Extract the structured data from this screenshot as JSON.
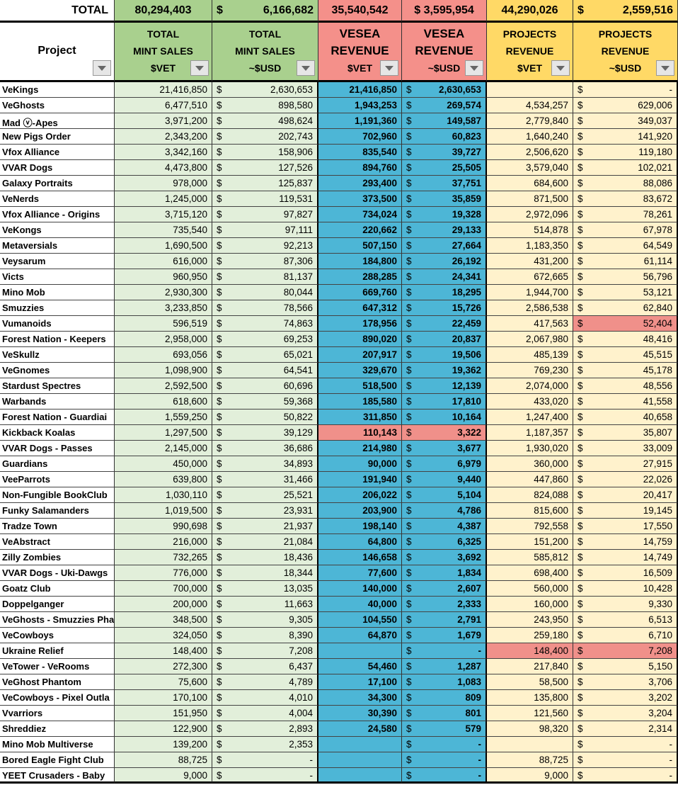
{
  "currency_symbol": "$",
  "totals": [
    "TOTAL",
    "80,294,403",
    "6,166,682",
    "35,540,542",
    "3,595,954",
    "44,290,026",
    "2,559,516"
  ],
  "headers": [
    [
      "Project"
    ],
    [
      "TOTAL",
      "MINT SALES",
      "$VET"
    ],
    [
      "TOTAL",
      "MINT SALES",
      "~$USD"
    ],
    [
      "VESEA",
      "REVENUE",
      "$VET"
    ],
    [
      "VESEA",
      "REVENUE",
      "~$USD"
    ],
    [
      "PROJECTS",
      "REVENUE",
      "$VET"
    ],
    [
      "PROJECTS",
      "REVENUE",
      "~$USD"
    ]
  ],
  "column_colors": {
    "header": [
      "#ffffff",
      "#a9d08e",
      "#a9d08e",
      "#f4908a",
      "#f4908a",
      "#ffd966",
      "#ffd966"
    ],
    "body": [
      "#ffffff",
      "#e2efda",
      "#e2efda",
      "#4db6d6",
      "#4db6d6",
      "#fff2cc",
      "#fff2cc"
    ]
  },
  "highlight_color": "#f0908a",
  "highlights": [
    [
      22,
      3
    ],
    [
      22,
      4
    ],
    [
      15,
      6
    ],
    [
      36,
      5
    ],
    [
      36,
      6
    ]
  ],
  "rows": [
    [
      "VeKings",
      "21,416,850",
      "2,630,653",
      "21,416,850",
      "2,630,653",
      null,
      "-"
    ],
    [
      "VeGhosts",
      "6,477,510",
      "898,580",
      "1,943,253",
      "269,574",
      "4,534,257",
      "629,006"
    ],
    [
      "Mad ⓥ-Apes",
      "3,971,200",
      "498,624",
      "1,191,360",
      "149,587",
      "2,779,840",
      "349,037"
    ],
    [
      "New Pigs Order",
      "2,343,200",
      "202,743",
      "702,960",
      "60,823",
      "1,640,240",
      "141,920"
    ],
    [
      "Vfox Alliance",
      "3,342,160",
      "158,906",
      "835,540",
      "39,727",
      "2,506,620",
      "119,180"
    ],
    [
      "VVAR Dogs",
      "4,473,800",
      "127,526",
      "894,760",
      "25,505",
      "3,579,040",
      "102,021"
    ],
    [
      "Galaxy Portraits",
      "978,000",
      "125,837",
      "293,400",
      "37,751",
      "684,600",
      "88,086"
    ],
    [
      "VeNerds",
      "1,245,000",
      "119,531",
      "373,500",
      "35,859",
      "871,500",
      "83,672"
    ],
    [
      "Vfox Alliance - Origins",
      "3,715,120",
      "97,827",
      "734,024",
      "19,328",
      "2,972,096",
      "78,261"
    ],
    [
      "VeKongs",
      "735,540",
      "97,111",
      "220,662",
      "29,133",
      "514,878",
      "67,978"
    ],
    [
      "Metaversials",
      "1,690,500",
      "92,213",
      "507,150",
      "27,664",
      "1,183,350",
      "64,549"
    ],
    [
      "Veysarum",
      "616,000",
      "87,306",
      "184,800",
      "26,192",
      "431,200",
      "61,114"
    ],
    [
      "Victs",
      "960,950",
      "81,137",
      "288,285",
      "24,341",
      "672,665",
      "56,796"
    ],
    [
      "Mino Mob",
      "2,930,300",
      "80,044",
      "669,760",
      "18,295",
      "1,944,700",
      "53,121"
    ],
    [
      "Smuzzies",
      "3,233,850",
      "78,566",
      "647,312",
      "15,726",
      "2,586,538",
      "62,840"
    ],
    [
      "Vumanoids",
      "596,519",
      "74,863",
      "178,956",
      "22,459",
      "417,563",
      "52,404"
    ],
    [
      "Forest Nation - Keepers",
      "2,958,000",
      "69,253",
      "890,020",
      "20,837",
      "2,067,980",
      "48,416"
    ],
    [
      "VeSkullz",
      "693,056",
      "65,021",
      "207,917",
      "19,506",
      "485,139",
      "45,515"
    ],
    [
      "VeGnomes",
      "1,098,900",
      "64,541",
      "329,670",
      "19,362",
      "769,230",
      "45,178"
    ],
    [
      "Stardust Spectres",
      "2,592,500",
      "60,696",
      "518,500",
      "12,139",
      "2,074,000",
      "48,556"
    ],
    [
      "Warbands",
      "618,600",
      "59,368",
      "185,580",
      "17,810",
      "433,020",
      "41,558"
    ],
    [
      "Forest Nation - Guardiai",
      "1,559,250",
      "50,822",
      "311,850",
      "10,164",
      "1,247,400",
      "40,658"
    ],
    [
      "Kickback Koalas",
      "1,297,500",
      "39,129",
      "110,143",
      "3,322",
      "1,187,357",
      "35,807"
    ],
    [
      "VVAR Dogs - Passes",
      "2,145,000",
      "36,686",
      "214,980",
      "3,677",
      "1,930,020",
      "33,009"
    ],
    [
      "Guardians",
      "450,000",
      "34,893",
      "90,000",
      "6,979",
      "360,000",
      "27,915"
    ],
    [
      "VeeParrots",
      "639,800",
      "31,466",
      "191,940",
      "9,440",
      "447,860",
      "22,026"
    ],
    [
      "Non-Fungible BookClub",
      "1,030,110",
      "25,521",
      "206,022",
      "5,104",
      "824,088",
      "20,417"
    ],
    [
      "Funky Salamanders",
      "1,019,500",
      "23,931",
      "203,900",
      "4,786",
      "815,600",
      "19,145"
    ],
    [
      "Tradze Town",
      "990,698",
      "21,937",
      "198,140",
      "4,387",
      "792,558",
      "17,550"
    ],
    [
      "VeAbstract",
      "216,000",
      "21,084",
      "64,800",
      "6,325",
      "151,200",
      "14,759"
    ],
    [
      "Zilly Zombies",
      "732,265",
      "18,436",
      "146,658",
      "3,692",
      "585,812",
      "14,749"
    ],
    [
      "VVAR Dogs - Uki-Dawgs",
      "776,000",
      "18,344",
      "77,600",
      "1,834",
      "698,400",
      "16,509"
    ],
    [
      "Goatz Club",
      "700,000",
      "13,035",
      "140,000",
      "2,607",
      "560,000",
      "10,428"
    ],
    [
      "Doppelganger",
      "200,000",
      "11,663",
      "40,000",
      "2,333",
      "160,000",
      "9,330"
    ],
    [
      "VeGhosts - Smuzzies Pha",
      "348,500",
      "9,305",
      "104,550",
      "2,791",
      "243,950",
      "6,513"
    ],
    [
      "VeCowboys",
      "324,050",
      "8,390",
      "64,870",
      "1,679",
      "259,180",
      "6,710"
    ],
    [
      "Ukraine Relief",
      "148,400",
      "7,208",
      null,
      "-",
      "148,400",
      "7,208"
    ],
    [
      "VeTower - VeRooms",
      "272,300",
      "6,437",
      "54,460",
      "1,287",
      "217,840",
      "5,150"
    ],
    [
      "VeGhost Phantom",
      "75,600",
      "4,789",
      "17,100",
      "1,083",
      "58,500",
      "3,706"
    ],
    [
      "VeCowboys - Pixel Outla",
      "170,100",
      "4,010",
      "34,300",
      "809",
      "135,800",
      "3,202"
    ],
    [
      "Vvarriors",
      "151,950",
      "4,004",
      "30,390",
      "801",
      "121,560",
      "3,204"
    ],
    [
      "Shreddiez",
      "122,900",
      "2,893",
      "24,580",
      "579",
      "98,320",
      "2,314"
    ],
    [
      "Mino Mob Multiverse",
      "139,200",
      "2,353",
      null,
      "-",
      null,
      "-"
    ],
    [
      "Bored Eagle Fight Club",
      "88,725",
      "-",
      null,
      "-",
      "88,725",
      "-"
    ],
    [
      "YEET Crusaders - Baby",
      "9,000",
      "-",
      null,
      "-",
      "9,000",
      "-"
    ]
  ]
}
